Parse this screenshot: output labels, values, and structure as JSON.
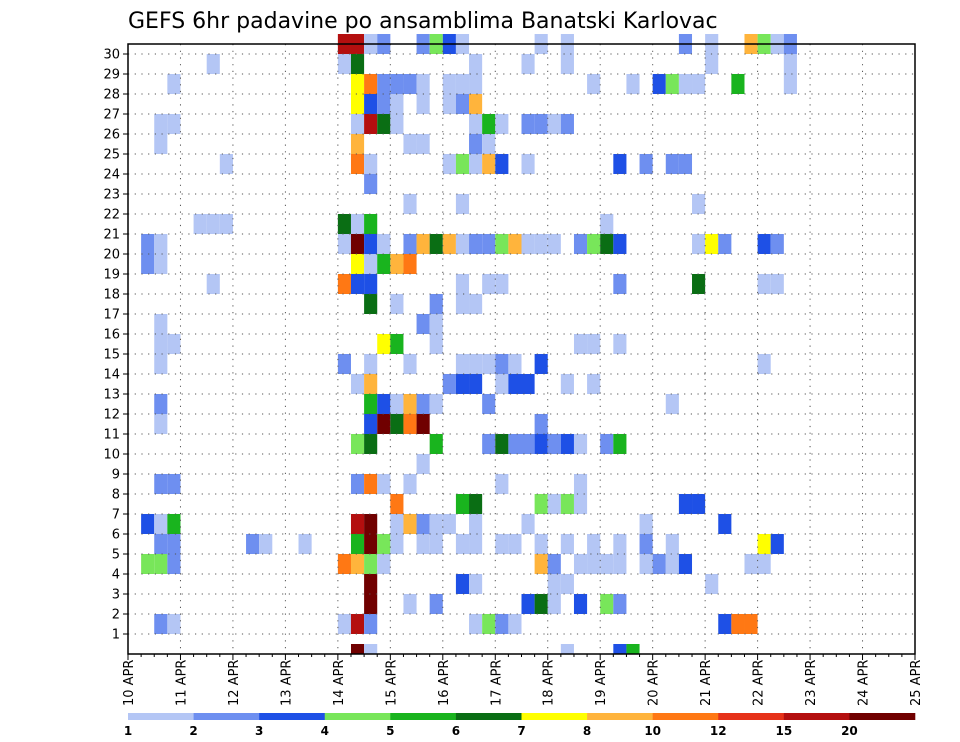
{
  "chart_data": {
    "type": "heatmap",
    "title": "GEFS 6hr padavine po ansamblima Banatski Karlovac",
    "y_ticks": [
      "1",
      "2",
      "3",
      "4",
      "5",
      "6",
      "7",
      "8",
      "9",
      "10",
      "11",
      "12",
      "13",
      "14",
      "15",
      "16",
      "17",
      "18",
      "19",
      "20",
      "21",
      "22",
      "23",
      "24",
      "25",
      "26",
      "27",
      "28",
      "29",
      "30"
    ],
    "x_ticks": [
      "10 APR",
      "11 APR",
      "12 APR",
      "13 APR",
      "14 APR",
      "15 APR",
      "16 APR",
      "17 APR",
      "18 APR",
      "19 APR",
      "20 APR",
      "21 APR",
      "22 APR",
      "23 APR",
      "24 APR",
      "25 APR"
    ],
    "x_range_days": [
      0,
      15
    ],
    "steps_per_day": 4,
    "grid": "dotted",
    "legend": {
      "position": "bottom",
      "labels": [
        "1",
        "2",
        "3",
        "4",
        "5",
        "6",
        "7",
        "8",
        "10",
        "12",
        "15",
        "20"
      ],
      "colors": [
        "#b4c6f5",
        "#6e8ff0",
        "#1e50e6",
        "#78e65a",
        "#19b41e",
        "#0a6e14",
        "#ffff00",
        "#ffb43c",
        "#ff7814",
        "#e63219",
        "#b40f0f",
        "#700000"
      ]
    },
    "cells": [
      [
        30,
        -1,
        10
      ],
      [
        30,
        0,
        10
      ],
      [
        30,
        1,
        0
      ],
      [
        30,
        2,
        1
      ],
      [
        30,
        5,
        1
      ],
      [
        30,
        6,
        3
      ],
      [
        30,
        7,
        2
      ],
      [
        30,
        8,
        0
      ],
      [
        30,
        14,
        0
      ],
      [
        30,
        16,
        0
      ],
      [
        30,
        25,
        1
      ],
      [
        30,
        27,
        0
      ],
      [
        30,
        30,
        7
      ],
      [
        30,
        31,
        3
      ],
      [
        30,
        32,
        0
      ],
      [
        30,
        33,
        1
      ],
      [
        29,
        -1,
        0
      ],
      [
        29,
        0,
        5
      ],
      [
        29,
        9,
        0
      ],
      [
        29,
        13,
        0
      ],
      [
        29,
        16,
        0
      ],
      [
        29,
        27,
        0
      ],
      [
        29,
        33,
        0
      ],
      [
        28,
        0,
        6
      ],
      [
        28,
        1,
        8
      ],
      [
        28,
        2,
        1
      ],
      [
        28,
        3,
        1
      ],
      [
        28,
        4,
        1
      ],
      [
        28,
        5,
        0
      ],
      [
        28,
        7,
        0
      ],
      [
        28,
        8,
        0
      ],
      [
        28,
        9,
        0
      ],
      [
        28,
        18,
        0
      ],
      [
        28,
        21,
        0
      ],
      [
        28,
        23,
        2
      ],
      [
        28,
        24,
        3
      ],
      [
        28,
        25,
        0
      ],
      [
        28,
        26,
        0
      ],
      [
        28,
        29,
        4
      ],
      [
        28,
        33,
        0
      ],
      [
        27,
        0,
        6
      ],
      [
        27,
        1,
        2
      ],
      [
        27,
        2,
        1
      ],
      [
        27,
        3,
        0
      ],
      [
        27,
        5,
        0
      ],
      [
        27,
        7,
        0
      ],
      [
        27,
        8,
        1
      ],
      [
        27,
        9,
        7
      ],
      [
        26,
        0,
        0
      ],
      [
        26,
        1,
        10
      ],
      [
        26,
        2,
        5
      ],
      [
        26,
        3,
        0
      ],
      [
        26,
        9,
        0
      ],
      [
        26,
        10,
        4
      ],
      [
        26,
        11,
        0
      ],
      [
        26,
        13,
        1
      ],
      [
        26,
        14,
        1
      ],
      [
        26,
        15,
        0
      ],
      [
        26,
        16,
        1
      ],
      [
        25,
        0,
        7
      ],
      [
        25,
        4,
        0
      ],
      [
        25,
        5,
        0
      ],
      [
        25,
        9,
        1
      ],
      [
        25,
        10,
        0
      ],
      [
        24,
        0,
        8
      ],
      [
        24,
        1,
        0
      ],
      [
        24,
        7,
        0
      ],
      [
        24,
        8,
        3
      ],
      [
        24,
        9,
        0
      ],
      [
        24,
        10,
        7
      ],
      [
        24,
        11,
        2
      ],
      [
        24,
        13,
        0
      ],
      [
        24,
        20,
        2
      ],
      [
        24,
        22,
        1
      ],
      [
        24,
        24,
        1
      ],
      [
        24,
        25,
        1
      ],
      [
        23,
        1,
        1
      ],
      [
        22,
        4,
        0
      ],
      [
        22,
        8,
        0
      ],
      [
        22,
        26,
        0
      ],
      [
        21,
        -1,
        5
      ],
      [
        21,
        0,
        0
      ],
      [
        21,
        1,
        4
      ],
      [
        21,
        19,
        0
      ],
      [
        20,
        -1,
        0
      ],
      [
        20,
        0,
        11
      ],
      [
        20,
        1,
        2
      ],
      [
        20,
        2,
        0
      ],
      [
        20,
        4,
        1
      ],
      [
        20,
        5,
        7
      ],
      [
        20,
        6,
        5
      ],
      [
        20,
        7,
        7
      ],
      [
        20,
        8,
        0
      ],
      [
        20,
        9,
        1
      ],
      [
        20,
        10,
        1
      ],
      [
        20,
        11,
        3
      ],
      [
        20,
        12,
        7
      ],
      [
        20,
        13,
        0
      ],
      [
        20,
        14,
        0
      ],
      [
        20,
        15,
        0
      ],
      [
        20,
        17,
        1
      ],
      [
        20,
        18,
        3
      ],
      [
        20,
        19,
        5
      ],
      [
        20,
        20,
        2
      ],
      [
        20,
        26,
        0
      ],
      [
        20,
        27,
        6
      ],
      [
        20,
        28,
        1
      ],
      [
        20,
        31,
        2
      ],
      [
        20,
        32,
        1
      ],
      [
        19,
        0,
        6
      ],
      [
        19,
        1,
        0
      ],
      [
        19,
        2,
        4
      ],
      [
        19,
        3,
        7
      ],
      [
        19,
        4,
        8
      ],
      [
        18,
        -1,
        8
      ],
      [
        18,
        0,
        2
      ],
      [
        18,
        1,
        2
      ],
      [
        18,
        8,
        0
      ],
      [
        18,
        10,
        0
      ],
      [
        18,
        11,
        0
      ],
      [
        18,
        20,
        1
      ],
      [
        18,
        26,
        5
      ],
      [
        18,
        31,
        0
      ],
      [
        18,
        32,
        0
      ],
      [
        17,
        1,
        5
      ],
      [
        17,
        3,
        0
      ],
      [
        17,
        6,
        1
      ],
      [
        17,
        8,
        0
      ],
      [
        17,
        9,
        0
      ],
      [
        16,
        5,
        1
      ],
      [
        16,
        6,
        0
      ],
      [
        15,
        2,
        6
      ],
      [
        15,
        3,
        4
      ],
      [
        15,
        6,
        0
      ],
      [
        15,
        17,
        0
      ],
      [
        15,
        18,
        0
      ],
      [
        15,
        20,
        0
      ],
      [
        14,
        -1,
        1
      ],
      [
        14,
        1,
        0
      ],
      [
        14,
        4,
        0
      ],
      [
        14,
        8,
        0
      ],
      [
        14,
        9,
        0
      ],
      [
        14,
        10,
        0
      ],
      [
        14,
        11,
        1
      ],
      [
        14,
        12,
        0
      ],
      [
        14,
        14,
        2
      ],
      [
        14,
        31,
        0
      ],
      [
        13,
        0,
        0
      ],
      [
        13,
        1,
        7
      ],
      [
        13,
        7,
        1
      ],
      [
        13,
        8,
        2
      ],
      [
        13,
        9,
        2
      ],
      [
        13,
        11,
        0
      ],
      [
        13,
        12,
        2
      ],
      [
        13,
        13,
        2
      ],
      [
        13,
        16,
        0
      ],
      [
        13,
        18,
        0
      ],
      [
        12,
        1,
        4
      ],
      [
        12,
        2,
        2
      ],
      [
        12,
        3,
        0
      ],
      [
        12,
        4,
        7
      ],
      [
        12,
        5,
        1
      ],
      [
        12,
        6,
        0
      ],
      [
        12,
        10,
        1
      ],
      [
        12,
        24,
        0
      ],
      [
        11,
        1,
        2
      ],
      [
        11,
        2,
        11
      ],
      [
        11,
        3,
        5
      ],
      [
        11,
        4,
        8
      ],
      [
        11,
        5,
        11
      ],
      [
        11,
        14,
        1
      ],
      [
        10,
        0,
        3
      ],
      [
        10,
        1,
        5
      ],
      [
        10,
        6,
        4
      ],
      [
        10,
        10,
        1
      ],
      [
        10,
        11,
        5
      ],
      [
        10,
        12,
        1
      ],
      [
        10,
        13,
        1
      ],
      [
        10,
        14,
        2
      ],
      [
        10,
        15,
        1
      ],
      [
        10,
        16,
        2
      ],
      [
        10,
        17,
        0
      ],
      [
        10,
        19,
        1
      ],
      [
        10,
        20,
        4
      ],
      [
        9,
        5,
        0
      ],
      [
        8,
        0,
        1
      ],
      [
        8,
        1,
        8
      ],
      [
        8,
        2,
        0
      ],
      [
        8,
        4,
        0
      ],
      [
        8,
        11,
        0
      ],
      [
        8,
        17,
        0
      ],
      [
        7,
        3,
        8
      ],
      [
        7,
        8,
        4
      ],
      [
        7,
        9,
        5
      ],
      [
        7,
        14,
        3
      ],
      [
        7,
        15,
        0
      ],
      [
        7,
        16,
        3
      ],
      [
        7,
        17,
        0
      ],
      [
        7,
        25,
        2
      ],
      [
        7,
        26,
        2
      ],
      [
        6,
        0,
        10
      ],
      [
        6,
        1,
        11
      ],
      [
        6,
        3,
        0
      ],
      [
        6,
        4,
        7
      ],
      [
        6,
        5,
        1
      ],
      [
        6,
        6,
        0
      ],
      [
        6,
        7,
        0
      ],
      [
        6,
        9,
        0
      ],
      [
        6,
        13,
        0
      ],
      [
        6,
        22,
        0
      ],
      [
        6,
        28,
        2
      ],
      [
        5,
        -4,
        0
      ],
      [
        5,
        0,
        4
      ],
      [
        5,
        1,
        11
      ],
      [
        5,
        2,
        3
      ],
      [
        5,
        3,
        0
      ],
      [
        5,
        5,
        0
      ],
      [
        5,
        6,
        0
      ],
      [
        5,
        8,
        0
      ],
      [
        5,
        9,
        0
      ],
      [
        5,
        11,
        0
      ],
      [
        5,
        12,
        0
      ],
      [
        5,
        14,
        0
      ],
      [
        5,
        16,
        0
      ],
      [
        5,
        18,
        0
      ],
      [
        5,
        20,
        0
      ],
      [
        5,
        22,
        1
      ],
      [
        5,
        24,
        0
      ],
      [
        5,
        31,
        6
      ],
      [
        5,
        32,
        2
      ],
      [
        4,
        -1,
        8
      ],
      [
        4,
        0,
        7
      ],
      [
        4,
        1,
        3
      ],
      [
        4,
        2,
        0
      ],
      [
        4,
        14,
        7
      ],
      [
        4,
        15,
        1
      ],
      [
        4,
        17,
        0
      ],
      [
        4,
        18,
        0
      ],
      [
        4,
        19,
        0
      ],
      [
        4,
        20,
        0
      ],
      [
        4,
        22,
        0
      ],
      [
        4,
        23,
        1
      ],
      [
        4,
        24,
        0
      ],
      [
        4,
        25,
        2
      ],
      [
        4,
        30,
        0
      ],
      [
        4,
        31,
        0
      ],
      [
        3,
        1,
        11
      ],
      [
        3,
        8,
        2
      ],
      [
        3,
        9,
        0
      ],
      [
        3,
        15,
        0
      ],
      [
        3,
        16,
        0
      ],
      [
        3,
        27,
        0
      ],
      [
        2,
        1,
        11
      ],
      [
        2,
        4,
        0
      ],
      [
        2,
        6,
        1
      ],
      [
        2,
        13,
        2
      ],
      [
        2,
        14,
        5
      ],
      [
        2,
        15,
        0
      ],
      [
        2,
        17,
        2
      ],
      [
        2,
        19,
        3
      ],
      [
        2,
        20,
        1
      ],
      [
        1,
        -1,
        0
      ],
      [
        1,
        0,
        10
      ],
      [
        1,
        1,
        1
      ],
      [
        1,
        9,
        0
      ],
      [
        1,
        10,
        3
      ],
      [
        1,
        11,
        1
      ],
      [
        1,
        12,
        0
      ],
      [
        1,
        28,
        2
      ],
      [
        1,
        29,
        8
      ],
      [
        1,
        30,
        8
      ],
      [
        0,
        0,
        11
      ],
      [
        0,
        1,
        0
      ],
      [
        0,
        16,
        0
      ],
      [
        0,
        20,
        2
      ],
      [
        0,
        21,
        4
      ]
    ],
    "ensemble_left": {
      "comment_cells": "rows 1-30, columns at 6hr steps before 14 APR",
      "cells": [
        [
          19,
          0,
          1
        ],
        [
          20,
          0,
          1
        ],
        [
          19,
          1,
          0
        ],
        [
          20,
          1,
          0
        ],
        [
          6,
          0,
          2
        ],
        [
          6,
          1,
          0
        ],
        [
          6,
          2,
          4
        ],
        [
          5,
          1,
          1
        ],
        [
          5,
          2,
          1
        ],
        [
          4,
          1,
          3
        ],
        [
          4,
          2,
          1
        ],
        [
          4,
          0,
          3
        ],
        [
          8,
          1,
          1
        ],
        [
          8,
          2,
          1
        ],
        [
          12,
          1,
          1
        ],
        [
          11,
          1,
          0
        ],
        [
          14,
          1,
          0
        ],
        [
          15,
          1,
          0
        ],
        [
          15,
          2,
          0
        ],
        [
          16,
          1,
          0
        ],
        [
          26,
          1,
          0
        ],
        [
          26,
          2,
          0
        ],
        [
          25,
          1,
          0
        ],
        [
          28,
          2,
          0
        ],
        [
          1,
          1,
          1
        ],
        [
          1,
          2,
          0
        ],
        [
          21,
          4,
          0
        ],
        [
          21,
          5,
          0
        ],
        [
          21,
          6,
          0
        ],
        [
          24,
          6,
          0
        ],
        [
          18,
          5,
          0
        ],
        [
          29,
          5,
          0
        ],
        [
          5,
          8,
          1
        ],
        [
          5,
          9,
          0
        ]
      ]
    }
  }
}
